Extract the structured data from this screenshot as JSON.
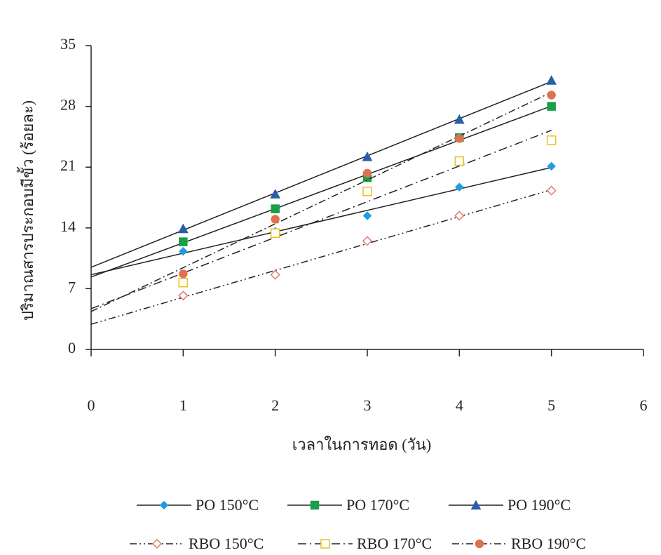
{
  "chart_data": {
    "type": "scatter",
    "x_label": "เวลาในการทอด (วัน)",
    "y_label": "ปริมาณสารประกอบมีขั้ว (ร้อยละ)",
    "x": [
      1,
      2,
      3,
      4,
      5
    ],
    "xlim": [
      0,
      6
    ],
    "xticks": [
      0,
      1,
      2,
      3,
      4,
      5,
      6
    ],
    "ylim": [
      0,
      35
    ],
    "yticks": [
      0,
      7,
      14,
      21,
      28,
      35
    ],
    "trendline": true,
    "series": [
      {
        "name": "PO 150°C",
        "color": "#1e9ee0",
        "marker": "diamond",
        "line_color": "#222",
        "dash": "none",
        "values": [
          11.3,
          13.6,
          15.4,
          18.7,
          21.1
        ]
      },
      {
        "name": "PO 170°C",
        "color": "#1a9e4a",
        "marker": "square",
        "line_color": "#222",
        "dash": "none",
        "values": [
          12.4,
          16.2,
          19.8,
          24.4,
          28.0
        ]
      },
      {
        "name": "PO 190°C",
        "color": "#2a5ea8",
        "marker": "triangle",
        "line_color": "#222",
        "dash": "none",
        "values": [
          13.9,
          17.9,
          22.2,
          26.5,
          31.0
        ]
      },
      {
        "name": "RBO 150°C",
        "color": "#e07a6a",
        "marker": "open-diamond",
        "line_color": "#222",
        "dash": "10 4 2 4 2 4",
        "values": [
          6.2,
          8.6,
          12.5,
          15.4,
          18.3
        ]
      },
      {
        "name": "RBO 170°C",
        "color": "#e8c020",
        "marker": "open-square",
        "line_color": "#222",
        "dash": "12 5 2 5",
        "values": [
          7.7,
          13.4,
          18.2,
          21.7,
          24.1
        ]
      },
      {
        "name": "RBO 190°C",
        "color": "#e07050",
        "marker": "circle",
        "line_color": "#222",
        "dash": "10 4 2 4",
        "values": [
          8.7,
          15.0,
          20.3,
          24.3,
          29.3
        ]
      }
    ]
  }
}
